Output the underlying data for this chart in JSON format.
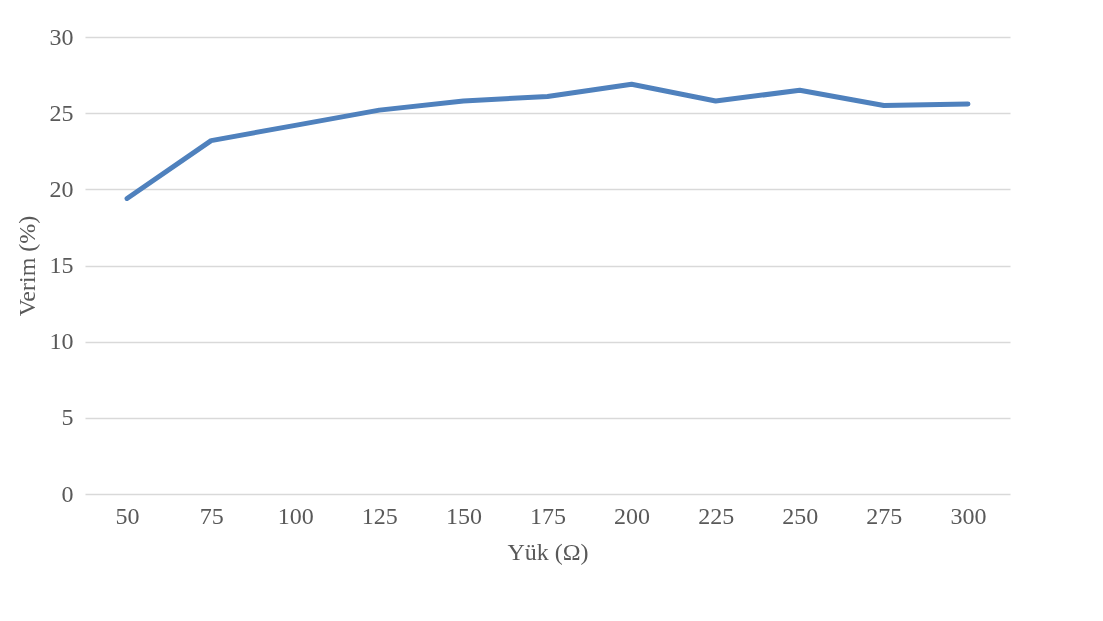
{
  "chart_data": {
    "type": "line",
    "xlabel": "Yük (Ω)",
    "ylabel": "Verim (%)",
    "categories": [
      "50",
      "75",
      "100",
      "125",
      "150",
      "175",
      "200",
      "225",
      "250",
      "275",
      "300"
    ],
    "series": [
      {
        "color": "#4f81bd",
        "values": [
          19.4,
          23.2,
          24.2,
          25.2,
          25.8,
          26.1,
          26.9,
          25.8,
          26.5,
          25.5,
          25.6
        ]
      }
    ],
    "ylim": [
      0,
      30
    ],
    "yticks": [
      0,
      5,
      10,
      15,
      20,
      25,
      30
    ],
    "grid": "y",
    "marker": "none",
    "line_style": "solid"
  }
}
